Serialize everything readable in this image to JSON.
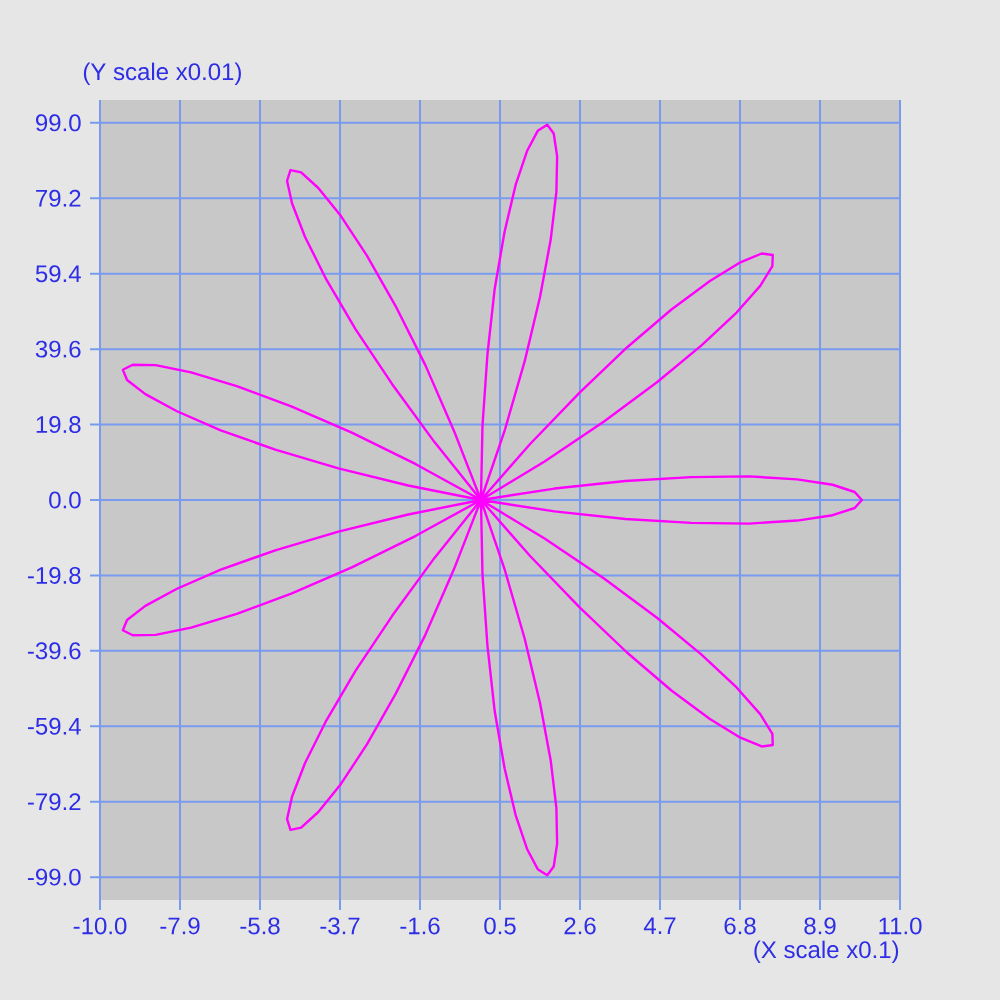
{
  "chart_data": {
    "type": "line",
    "xlabel": "(X scale x0.1)",
    "ylabel": "(Y scale x0.01)",
    "color": "#ff00ff",
    "x": [
      0,
      -1.91,
      -3.74,
      -5.4,
      -6.83,
      -7.98,
      -8.81,
      -9.29,
      -9.4,
      -9.14,
      -8.54,
      -7.61,
      -6.41,
      -4.98,
      -3.39,
      -1.71,
      0,
      1.67,
      3.23,
      4.62,
      5.79,
      6.71,
      7.33,
      7.65,
      7.66,
      7.37,
      6.81,
      6.01,
      5.0,
      3.84,
      2.59,
      1.29,
      0,
      -1.22,
      -2.33,
      -3.29,
      -4.06,
      -4.62,
      -4.96,
      -5.09,
      -5.0,
      -4.72,
      -4.27,
      -3.68,
      -2.99,
      -2.24,
      -1.46,
      -0.71,
      0,
      0.63,
      1.15,
      1.55,
      1.83,
      1.98,
      2.0,
      1.91,
      1.74,
      1.49,
      1.21,
      0.91,
      0.62,
      0.36,
      0.17,
      0.04,
      0,
      0.04,
      0.17,
      0.36,
      0.62,
      0.91,
      1.21,
      1.49,
      1.74,
      1.91,
      2.0,
      1.98,
      1.83,
      1.55,
      1.15,
      0.63,
      0,
      -0.71,
      -1.46,
      -2.24,
      -2.99,
      -3.68,
      -4.27,
      -4.72,
      -5.0,
      -5.09,
      -4.96,
      -4.62,
      -4.06,
      -3.29,
      -2.33,
      -1.22,
      0,
      1.29,
      2.59,
      3.84,
      5.0,
      6.01,
      6.81,
      7.37,
      7.66,
      7.65,
      7.33,
      6.71,
      5.79,
      4.62,
      3.23,
      1.67,
      0,
      -1.71,
      -3.39,
      -4.98,
      -6.41,
      -7.61,
      -8.54,
      -9.14,
      -9.4,
      -9.29,
      -8.81,
      -7.98,
      -6.83,
      -5.4,
      -3.74,
      -1.91,
      0,
      1.93,
      3.79,
      5.52,
      7.04,
      8.3,
      9.23,
      9.81,
      10.0,
      9.81,
      9.23,
      8.3,
      7.04,
      5.52,
      3.79,
      1.93,
      0,
      -1.91,
      -3.74
    ],
    "values": [
      0,
      -3.8,
      -8.3,
      -13.2,
      -18.3,
      -23.3,
      -27.8,
      -31.5,
      -34.2,
      -35.5,
      -35.4,
      -33.5,
      -29.9,
      -24.6,
      -17.7,
      -9.4,
      0,
      10.1,
      20.6,
      30.9,
      40.6,
      49.2,
      56.2,
      61.4,
      64.3,
      64.7,
      62.4,
      57.5,
      50.0,
      40.1,
      28.2,
      14.7,
      0,
      -15.2,
      -30.4,
      -44.8,
      -57.9,
      -69.1,
      -77.9,
      -83.8,
      -86.6,
      -86.0,
      -81.9,
      -74.6,
      -64.1,
      -50.9,
      -35.4,
      -18.2,
      0,
      18.5,
      36.5,
      53.3,
      68.3,
      80.8,
      90.2,
      96.2,
      98.5,
      96.9,
      91.6,
      82.7,
      70.4,
      55.4,
      38.2,
      19.5,
      0,
      -19.5,
      -38.2,
      -55.4,
      -70.4,
      -82.7,
      -91.6,
      -96.9,
      -98.5,
      -96.2,
      -90.2,
      -80.8,
      -68.3,
      -53.3,
      -36.5,
      -18.5,
      0,
      18.2,
      35.4,
      50.9,
      64.1,
      74.6,
      81.9,
      86.0,
      86.6,
      83.8,
      77.9,
      69.1,
      57.9,
      44.8,
      30.4,
      15.2,
      0,
      -14.7,
      -28.2,
      -40.1,
      -50.0,
      -57.5,
      -62.4,
      -64.7,
      -64.3,
      -61.4,
      -56.2,
      -49.2,
      -40.6,
      -30.9,
      -20.6,
      -10.1,
      0,
      9.4,
      17.7,
      24.6,
      29.9,
      33.5,
      35.4,
      35.5,
      34.2,
      31.5,
      27.8,
      23.3,
      18.3,
      13.2,
      8.3,
      3.8,
      0,
      -3.0,
      -5.0,
      -6.0,
      -6.2,
      -5.4,
      -4.0,
      -2.1,
      0,
      2.1,
      4.0,
      5.4,
      6.2,
      6.0,
      5.0,
      3.0,
      0,
      -3.8,
      -8.3
    ],
    "xlim": [
      -10,
      11
    ],
    "ylim": [
      -105,
      105
    ],
    "xticks": [
      {
        "value": -10,
        "label": "-10.0"
      },
      -7.9,
      -5.8,
      -3.7,
      -1.6,
      0.5,
      2.6,
      4.7,
      6.8,
      8.9,
      {
        "value": 11,
        "label": "11.0"
      }
    ],
    "yticks": [
      {
        "value": 99,
        "label": "99.0"
      },
      79.2,
      59.4,
      39.6,
      19.8,
      {
        "value": 0,
        "label": "0.0"
      },
      -19.8,
      -39.6,
      -59.4,
      -79.2,
      {
        "value": -99,
        "label": "-99.0"
      }
    ],
    "grid": true
  }
}
